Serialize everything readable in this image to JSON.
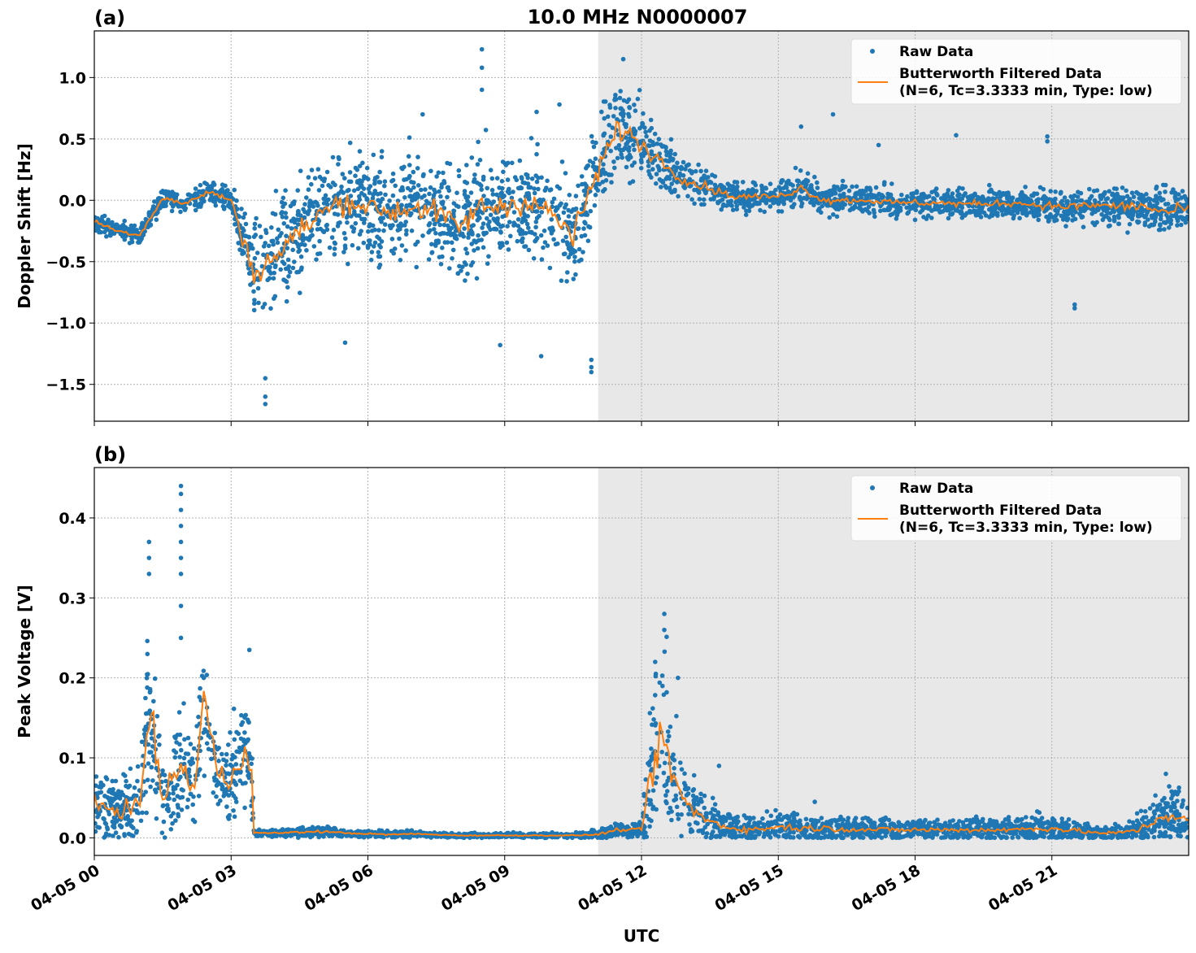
{
  "chart_data": {
    "type": "scatter+line",
    "title": "10.0 MHz N0000007",
    "xlabel": "UTC",
    "xlim_hours": [
      0,
      24
    ],
    "x_tick_hours": [
      0,
      3,
      6,
      9,
      12,
      15,
      18,
      21
    ],
    "x_tick_labels": [
      "04-05 00",
      "04-05 03",
      "04-05 06",
      "04-05 09",
      "04-05 12",
      "04-05 15",
      "04-05 18",
      "04-05 21"
    ],
    "shaded_region_hours": [
      11.05,
      24
    ],
    "grid": true,
    "legend_placement": "top-right",
    "colors": {
      "raw": "#1f77b4",
      "filtered": "#ff7f0e",
      "shade": "#e8e8e8"
    },
    "panels": [
      {
        "label": "(a)",
        "ylabel": "Doppler Shift [Hz]",
        "ylim": [
          -1.8,
          1.38
        ],
        "y_ticks": [
          1.0,
          0.5,
          0.0,
          -0.5,
          -1.0,
          -1.5
        ],
        "y_tick_labels": [
          "1.0",
          "0.5",
          "0.0",
          "−0.5",
          "−1.0",
          "−1.5"
        ],
        "legend": [
          "Raw Data",
          "Butterworth Filtered Data",
          "(N=6, Tc=3.3333 min, Type: low)"
        ],
        "filtered_x_hours": [
          0,
          0.5,
          1,
          1.5,
          2,
          2.5,
          3,
          3.5,
          4,
          4.5,
          5,
          5.5,
          6,
          6.5,
          7,
          7.5,
          8,
          8.5,
          9,
          9.5,
          10,
          10.5,
          11,
          11.5,
          12,
          12.5,
          13,
          13.5,
          14,
          14.5,
          15,
          15.5,
          16,
          16.5,
          17,
          17.5,
          18,
          18.5,
          19,
          19.5,
          20,
          20.5,
          21,
          21.5,
          22,
          22.5,
          23,
          23.5,
          24
        ],
        "filtered_y": [
          -0.17,
          -0.25,
          -0.28,
          0.02,
          -0.03,
          0.07,
          0.0,
          -0.6,
          -0.45,
          -0.25,
          -0.1,
          0.0,
          -0.05,
          -0.1,
          -0.05,
          -0.1,
          -0.22,
          -0.05,
          -0.05,
          0.0,
          -0.1,
          -0.3,
          0.2,
          0.6,
          0.45,
          0.3,
          0.15,
          0.1,
          0.03,
          0.03,
          0.03,
          0.1,
          0.0,
          0.0,
          0.0,
          -0.02,
          -0.02,
          -0.02,
          -0.03,
          -0.03,
          -0.02,
          -0.03,
          -0.05,
          -0.05,
          -0.04,
          -0.05,
          -0.05,
          -0.1,
          -0.06
        ],
        "raw_spread": [
          0.05,
          0.05,
          0.06,
          0.06,
          0.06,
          0.06,
          0.08,
          0.3,
          0.3,
          0.28,
          0.28,
          0.28,
          0.28,
          0.28,
          0.28,
          0.28,
          0.3,
          0.3,
          0.3,
          0.3,
          0.3,
          0.3,
          0.28,
          0.25,
          0.22,
          0.15,
          0.12,
          0.1,
          0.08,
          0.08,
          0.08,
          0.1,
          0.08,
          0.08,
          0.08,
          0.08,
          0.08,
          0.08,
          0.08,
          0.08,
          0.08,
          0.08,
          0.1,
          0.1,
          0.1,
          0.12,
          0.12,
          0.14,
          0.12
        ],
        "raw_outliers": [
          [
            8.5,
            1.23
          ],
          [
            8.5,
            1.08
          ],
          [
            8.5,
            0.9
          ],
          [
            11.6,
            1.15
          ],
          [
            3.75,
            -1.66
          ],
          [
            3.75,
            -1.6
          ],
          [
            3.75,
            -1.45
          ],
          [
            10.9,
            -1.4
          ],
          [
            10.9,
            -1.36
          ],
          [
            10.9,
            -1.3
          ],
          [
            5.5,
            -1.16
          ],
          [
            8.9,
            -1.18
          ],
          [
            9.8,
            -1.27
          ],
          [
            21.5,
            -0.88
          ],
          [
            21.5,
            -0.85
          ],
          [
            18.9,
            0.53
          ],
          [
            17.2,
            0.45
          ],
          [
            15.5,
            0.6
          ],
          [
            16.2,
            0.7
          ],
          [
            20.9,
            0.52
          ],
          [
            20.9,
            0.48
          ],
          [
            7.2,
            0.7
          ],
          [
            9.7,
            0.72
          ],
          [
            10.2,
            0.78
          ]
        ]
      },
      {
        "label": "(b)",
        "ylabel": "Peak Voltage [V]",
        "ylim": [
          -0.022,
          0.463
        ],
        "y_ticks": [
          0.0,
          0.1,
          0.2,
          0.3,
          0.4
        ],
        "y_tick_labels": [
          "0.0",
          "0.1",
          "0.2",
          "0.3",
          "0.4"
        ],
        "legend": [
          "Raw Data",
          "Butterworth Filtered Data",
          "(N=6, Tc=3.3333 min, Type: low)"
        ],
        "filtered_x_hours": [
          0,
          0.5,
          1,
          1.2,
          1.5,
          1.9,
          2.2,
          2.4,
          2.7,
          3.0,
          3.3,
          3.45,
          3.5,
          4,
          4.5,
          5,
          5.5,
          6,
          6.5,
          7,
          7.5,
          8,
          8.5,
          9,
          9.5,
          10,
          10.5,
          11,
          11.5,
          12,
          12.2,
          12.5,
          12.8,
          13,
          13.5,
          14,
          14.5,
          15,
          15.5,
          16,
          17,
          18,
          19,
          20,
          21,
          22,
          22.5,
          23,
          23.5,
          24
        ],
        "filtered_y": [
          0.04,
          0.035,
          0.04,
          0.16,
          0.05,
          0.09,
          0.06,
          0.18,
          0.08,
          0.07,
          0.12,
          0.08,
          0.006,
          0.006,
          0.007,
          0.008,
          0.006,
          0.005,
          0.004,
          0.005,
          0.004,
          0.003,
          0.003,
          0.003,
          0.003,
          0.003,
          0.003,
          0.004,
          0.01,
          0.01,
          0.08,
          0.12,
          0.06,
          0.04,
          0.02,
          0.012,
          0.01,
          0.014,
          0.012,
          0.012,
          0.01,
          0.01,
          0.01,
          0.01,
          0.012,
          0.006,
          0.006,
          0.012,
          0.03,
          0.02
        ],
        "raw_spread": [
          0.03,
          0.03,
          0.035,
          0.08,
          0.04,
          0.05,
          0.04,
          0.06,
          0.04,
          0.04,
          0.06,
          0.05,
          0.003,
          0.003,
          0.004,
          0.005,
          0.003,
          0.003,
          0.003,
          0.003,
          0.002,
          0.002,
          0.002,
          0.002,
          0.002,
          0.002,
          0.002,
          0.004,
          0.006,
          0.006,
          0.07,
          0.09,
          0.05,
          0.03,
          0.02,
          0.012,
          0.012,
          0.014,
          0.012,
          0.012,
          0.01,
          0.01,
          0.01,
          0.01,
          0.012,
          0.006,
          0.008,
          0.015,
          0.03,
          0.02
        ],
        "raw_outliers": [
          [
            1.2,
            0.37
          ],
          [
            1.2,
            0.35
          ],
          [
            1.2,
            0.33
          ],
          [
            1.9,
            0.44
          ],
          [
            1.9,
            0.43
          ],
          [
            1.9,
            0.41
          ],
          [
            1.9,
            0.39
          ],
          [
            1.9,
            0.37
          ],
          [
            1.9,
            0.35
          ],
          [
            1.9,
            0.33
          ],
          [
            1.9,
            0.29
          ],
          [
            1.9,
            0.25
          ],
          [
            2.4,
            0.2
          ],
          [
            3.4,
            0.235
          ],
          [
            12.5,
            0.28
          ],
          [
            12.5,
            0.26
          ],
          [
            12.3,
            0.22
          ],
          [
            12.8,
            0.2
          ],
          [
            13.7,
            0.09
          ],
          [
            23.5,
            0.08
          ],
          [
            15.8,
            0.045
          ]
        ]
      }
    ]
  }
}
